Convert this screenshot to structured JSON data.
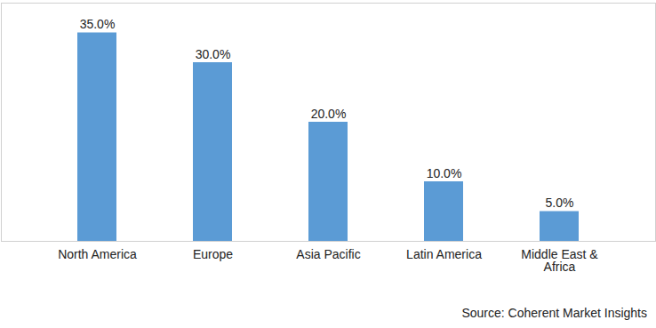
{
  "chart_data": {
    "type": "bar",
    "categories": [
      "North America",
      "Europe",
      "Asia Pacific",
      "Latin America",
      "Middle East & Africa"
    ],
    "values": [
      35,
      30,
      20,
      10,
      5
    ],
    "value_labels": [
      "35.0%",
      "30.0%",
      "20.0%",
      "10.0%",
      "5.0%"
    ],
    "data_labels": true,
    "color": "#5b9bd5",
    "ylim": [
      0,
      40
    ],
    "tick_labels": "x",
    "grid": false,
    "source": "Source: Coherent Market Insights"
  }
}
